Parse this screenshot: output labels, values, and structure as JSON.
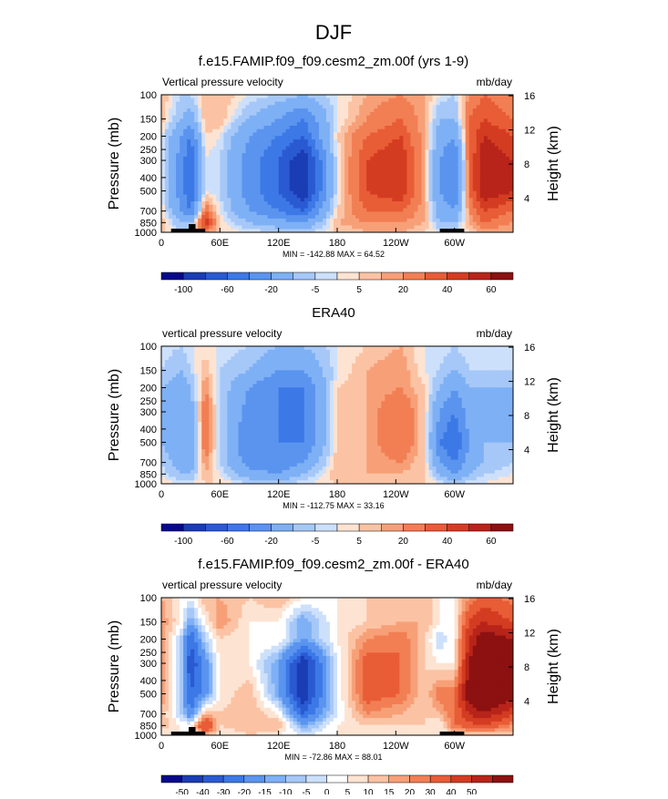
{
  "figure_title": "DJF",
  "chart_data": [
    {
      "type": "heatmap",
      "title": "f.e15.FAMIP.f09_f09.cesm2_zm.00f (yrs 1-9)",
      "left_label": "Vertical pressure velocity",
      "units": "mb/day",
      "xlabel": "",
      "ylabel": "Pressure (mb)",
      "y2label": "Height (km)",
      "x_ticks": [
        "0",
        "60E",
        "120E",
        "180",
        "120W",
        "60W"
      ],
      "x_tick_values": [
        0,
        60,
        120,
        180,
        240,
        300
      ],
      "xlim": [
        0,
        360
      ],
      "y_ticks": [
        "100",
        "150",
        "200",
        "250",
        "300",
        "400",
        "500",
        "700",
        "850",
        "1000"
      ],
      "y_tick_values": [
        100,
        150,
        200,
        250,
        300,
        400,
        500,
        700,
        850,
        1000
      ],
      "ylim": [
        1000,
        100
      ],
      "y_scale": "log",
      "y2_ticks": [
        "4",
        "8",
        "12",
        "16"
      ],
      "y2_tick_values": [
        4,
        8,
        12,
        16
      ],
      "min_max_text": "MIN = -142.88  MAX = 64.52",
      "colorbar_labels": [
        "-100",
        "-60",
        "-20",
        "-5",
        "5",
        "20",
        "40",
        "60"
      ],
      "contour_levels": [
        -120,
        -100,
        -80,
        -60,
        -40,
        -20,
        -10,
        -5,
        0,
        5,
        10,
        20,
        30,
        40,
        50,
        60
      ],
      "colors": [
        "#08088a",
        "#1a3cb4",
        "#2a5ad2",
        "#3c78e6",
        "#5a94ef",
        "#7eb0f5",
        "#a6c8f8",
        "#cde0fb",
        "#fde3d2",
        "#fbc3a4",
        "#f7a078",
        "#f27f54",
        "#e85c36",
        "#d43c22",
        "#b8241a",
        "#8c1111"
      ],
      "field": {
        "lon": [
          0,
          20,
          30,
          45,
          60,
          90,
          120,
          145,
          180,
          210,
          245,
          270,
          285,
          300,
          315,
          330,
          360
        ],
        "pressure": [
          100,
          150,
          200,
          300,
          500,
          700,
          850,
          1000
        ],
        "omega": [
          [
            5,
            -10,
            -10,
            5,
            5,
            -5,
            -10,
            -20,
            -5,
            5,
            10,
            5,
            -5,
            -10,
            10,
            20,
            10
          ],
          [
            5,
            -20,
            -30,
            5,
            5,
            -20,
            -40,
            -60,
            -5,
            10,
            20,
            5,
            -20,
            -20,
            20,
            30,
            20
          ],
          [
            -5,
            -40,
            -60,
            0,
            -5,
            -40,
            -60,
            -80,
            0,
            20,
            30,
            5,
            -30,
            -40,
            20,
            40,
            30
          ],
          [
            -5,
            -50,
            -80,
            -5,
            -10,
            -50,
            -80,
            -120,
            -5,
            30,
            40,
            5,
            -40,
            -60,
            20,
            50,
            40
          ],
          [
            -5,
            -50,
            -80,
            -5,
            -10,
            -50,
            -80,
            -120,
            -5,
            30,
            40,
            5,
            -40,
            -60,
            20,
            50,
            40
          ],
          [
            0,
            -40,
            -60,
            20,
            -5,
            -40,
            -60,
            -80,
            0,
            20,
            20,
            5,
            -30,
            -40,
            10,
            30,
            20
          ],
          [
            5,
            -20,
            -20,
            40,
            0,
            -20,
            -30,
            -40,
            5,
            10,
            10,
            5,
            -20,
            -20,
            5,
            20,
            10
          ],
          [
            0,
            -5,
            -5,
            10,
            0,
            -5,
            -10,
            -10,
            0,
            5,
            5,
            0,
            -5,
            -5,
            0,
            5,
            5
          ]
        ]
      }
    },
    {
      "type": "heatmap",
      "title": "ERA40",
      "left_label": "vertical pressure velocity",
      "units": "mb/day",
      "xlabel": "",
      "ylabel": "Pressure (mb)",
      "y2label": "Height (km)",
      "x_ticks": [
        "0",
        "60E",
        "120E",
        "180",
        "120W",
        "60W"
      ],
      "x_tick_values": [
        0,
        60,
        120,
        180,
        240,
        300
      ],
      "xlim": [
        0,
        360
      ],
      "y_ticks": [
        "100",
        "150",
        "200",
        "250",
        "300",
        "400",
        "500",
        "700",
        "850",
        "1000"
      ],
      "y_tick_values": [
        100,
        150,
        200,
        250,
        300,
        400,
        500,
        700,
        850,
        1000
      ],
      "ylim": [
        1000,
        100
      ],
      "y_scale": "log",
      "y2_ticks": [
        "4",
        "8",
        "12",
        "16"
      ],
      "y2_tick_values": [
        4,
        8,
        12,
        16
      ],
      "min_max_text": "MIN = -112.75  MAX = 33.16",
      "colorbar_labels": [
        "-100",
        "-60",
        "-20",
        "-5",
        "5",
        "20",
        "40",
        "60"
      ],
      "contour_levels": [
        -120,
        -100,
        -80,
        -60,
        -40,
        -20,
        -10,
        -5,
        0,
        5,
        10,
        20,
        30,
        40,
        50,
        60
      ],
      "colors": [
        "#08088a",
        "#1a3cb4",
        "#2a5ad2",
        "#3c78e6",
        "#5a94ef",
        "#7eb0f5",
        "#a6c8f8",
        "#cde0fb",
        "#fde3d2",
        "#fbc3a4",
        "#f7a078",
        "#f27f54",
        "#e85c36",
        "#d43c22",
        "#b8241a",
        "#8c1111"
      ],
      "field": {
        "lon": [
          0,
          20,
          30,
          45,
          60,
          90,
          120,
          145,
          180,
          210,
          245,
          270,
          285,
          300,
          315,
          330,
          360
        ],
        "pressure": [
          100,
          150,
          200,
          300,
          500,
          700,
          850,
          1000
        ],
        "omega": [
          [
            -5,
            -10,
            -5,
            -5,
            -5,
            -10,
            -20,
            -20,
            -5,
            0,
            5,
            -5,
            -5,
            -10,
            -5,
            -5,
            -5
          ],
          [
            -10,
            -20,
            -10,
            5,
            -10,
            -20,
            -40,
            -40,
            -5,
            5,
            10,
            -5,
            -10,
            -20,
            -10,
            -10,
            -10
          ],
          [
            -20,
            -30,
            -20,
            10,
            -10,
            -40,
            -60,
            -60,
            0,
            5,
            10,
            0,
            -20,
            -40,
            -20,
            -20,
            -20
          ],
          [
            -20,
            -40,
            -30,
            20,
            -10,
            -50,
            -60,
            -60,
            0,
            5,
            20,
            0,
            -40,
            -60,
            -30,
            -20,
            -20
          ],
          [
            -20,
            -40,
            -40,
            20,
            -10,
            -60,
            -60,
            -60,
            0,
            5,
            20,
            0,
            -60,
            -80,
            -40,
            -20,
            -20
          ],
          [
            -10,
            -30,
            -30,
            10,
            -10,
            -50,
            -60,
            -40,
            5,
            5,
            10,
            0,
            -40,
            -60,
            -30,
            -20,
            -10
          ],
          [
            -5,
            -20,
            -20,
            5,
            -5,
            -30,
            -40,
            -20,
            5,
            5,
            5,
            0,
            -20,
            -40,
            -20,
            -10,
            -5
          ],
          [
            0,
            -5,
            -5,
            0,
            0,
            -10,
            -10,
            -5,
            0,
            0,
            0,
            0,
            -5,
            -10,
            -5,
            -5,
            0
          ]
        ]
      }
    },
    {
      "type": "heatmap",
      "title": "f.e15.FAMIP.f09_f09.cesm2_zm.00f - ERA40",
      "left_label": "vertical pressure velocity",
      "units": "mb/day",
      "xlabel": "",
      "ylabel": "Pressure (mb)",
      "y2label": "Height (km)",
      "x_ticks": [
        "0",
        "60E",
        "120E",
        "180",
        "120W",
        "60W"
      ],
      "x_tick_values": [
        0,
        60,
        120,
        180,
        240,
        300
      ],
      "xlim": [
        0,
        360
      ],
      "y_ticks": [
        "100",
        "150",
        "200",
        "250",
        "300",
        "400",
        "500",
        "700",
        "850",
        "1000"
      ],
      "y_tick_values": [
        100,
        150,
        200,
        250,
        300,
        400,
        500,
        700,
        850,
        1000
      ],
      "ylim": [
        1000,
        100
      ],
      "y_scale": "log",
      "y2_ticks": [
        "4",
        "8",
        "12",
        "16"
      ],
      "y2_tick_values": [
        4,
        8,
        12,
        16
      ],
      "min_max_text": "MIN = -72.86  MAX = 88.01",
      "colorbar_labels": [
        "-50",
        "-40",
        "-30",
        "-20",
        "-15",
        "-10",
        "-5",
        "0",
        "5",
        "10",
        "15",
        "20",
        "30",
        "40",
        "50"
      ],
      "contour_levels": [
        -60,
        -50,
        -40,
        -30,
        -20,
        -15,
        -10,
        -5,
        0,
        5,
        10,
        15,
        20,
        30,
        40,
        50,
        60
      ],
      "colors": [
        "#08088a",
        "#1a3cb4",
        "#2a5ad2",
        "#3c78e6",
        "#5a94ef",
        "#7eb0f5",
        "#a6c8f8",
        "#cde0fb",
        "#ffffff",
        "#fde3d2",
        "#fbc3a4",
        "#f7a078",
        "#f27f54",
        "#e85c36",
        "#d43c22",
        "#b8241a",
        "#8c1111"
      ],
      "field": {
        "lon": [
          0,
          20,
          30,
          45,
          60,
          90,
          120,
          145,
          180,
          210,
          245,
          270,
          285,
          300,
          315,
          330,
          360
        ],
        "pressure": [
          100,
          150,
          200,
          300,
          500,
          700,
          850,
          1000
        ],
        "omega": [
          [
            10,
            0,
            -5,
            10,
            10,
            5,
            10,
            0,
            0,
            5,
            5,
            10,
            0,
            0,
            15,
            25,
            15
          ],
          [
            15,
            0,
            -20,
            0,
            15,
            0,
            0,
            -20,
            0,
            5,
            10,
            10,
            0,
            0,
            30,
            40,
            30
          ],
          [
            15,
            -10,
            -40,
            -10,
            5,
            0,
            0,
            -20,
            0,
            15,
            20,
            5,
            -10,
            0,
            40,
            60,
            50
          ],
          [
            15,
            -10,
            -50,
            -25,
            0,
            0,
            -20,
            -60,
            -5,
            25,
            20,
            5,
            0,
            0,
            50,
            70,
            60
          ],
          [
            15,
            -10,
            -40,
            -25,
            0,
            10,
            -20,
            -60,
            -5,
            25,
            20,
            5,
            20,
            20,
            60,
            70,
            60
          ],
          [
            10,
            -10,
            -30,
            10,
            5,
            10,
            0,
            -40,
            -5,
            15,
            10,
            5,
            10,
            20,
            40,
            50,
            30
          ],
          [
            10,
            0,
            0,
            35,
            5,
            10,
            10,
            -20,
            0,
            5,
            5,
            5,
            0,
            20,
            25,
            30,
            15
          ],
          [
            0,
            0,
            0,
            10,
            0,
            5,
            0,
            -5,
            0,
            5,
            5,
            0,
            0,
            5,
            5,
            5,
            5
          ]
        ]
      }
    }
  ]
}
